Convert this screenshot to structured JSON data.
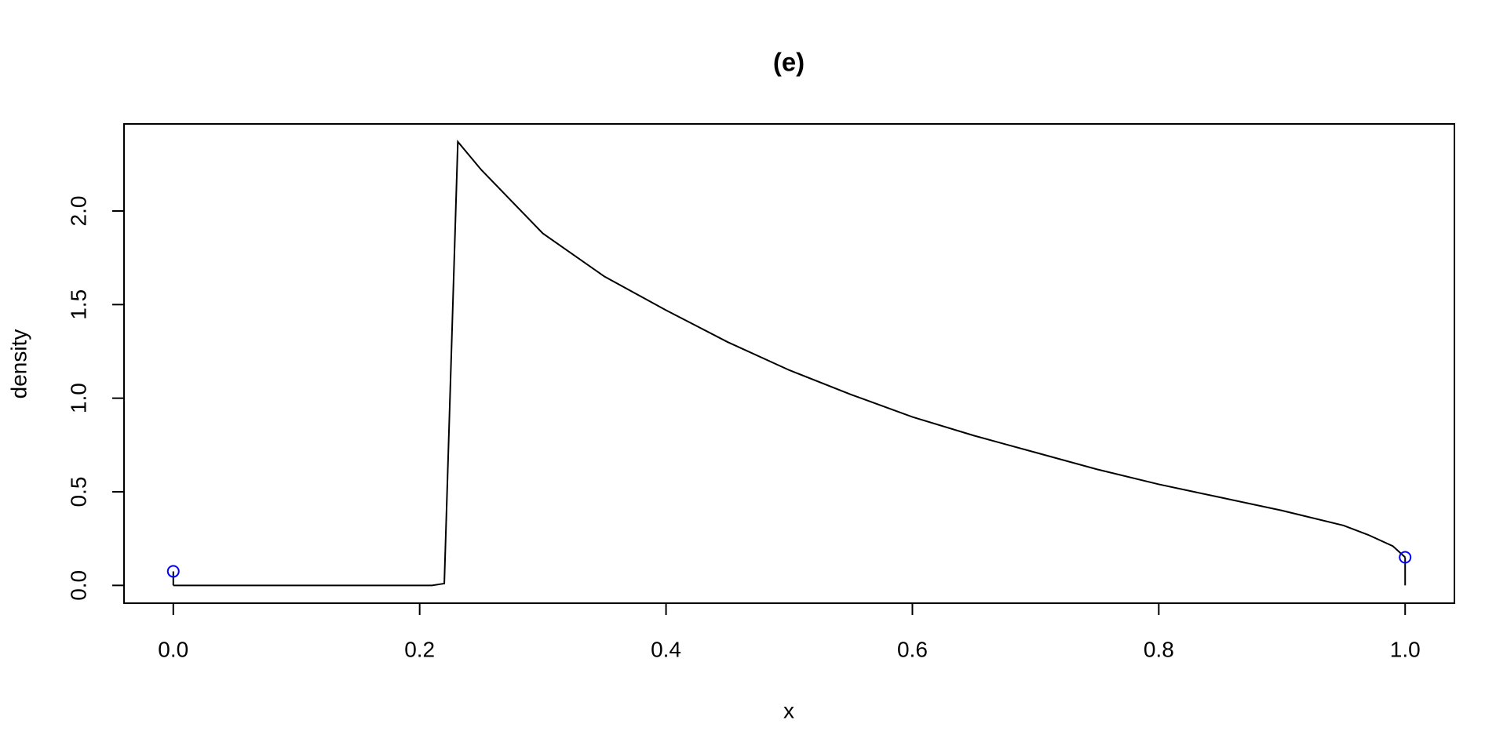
{
  "chart_data": {
    "type": "line",
    "title": "(e)",
    "x_label": "x",
    "y_label": "density",
    "x": [
      0,
      0.21,
      0.22,
      0.231,
      0.25,
      0.3,
      0.35,
      0.4,
      0.45,
      0.5,
      0.55,
      0.6,
      0.65,
      0.7,
      0.75,
      0.8,
      0.85,
      0.9,
      0.95,
      0.97,
      0.99,
      1.0
    ],
    "series": [
      {
        "color": "#000000",
        "values": [
          0,
          0,
          0.01,
          2.37,
          2.22,
          1.88,
          1.65,
          1.47,
          1.3,
          1.15,
          1.02,
          0.9,
          0.8,
          0.71,
          0.62,
          0.54,
          0.47,
          0.4,
          0.32,
          0.27,
          0.21,
          0.15
        ]
      }
    ],
    "point_masses": {
      "x": [
        0,
        1
      ],
      "values": [
        0.075,
        0.15
      ],
      "color": "#0000ff",
      "stem_color": "#000000"
    },
    "xlim": [
      -0.04,
      1.04
    ],
    "ylim": [
      -0.095,
      2.465
    ],
    "xticks": [
      {
        "value": 0,
        "label": "0.0"
      },
      0.2,
      0.4,
      0.6,
      0.8,
      {
        "value": 1,
        "label": "1.0"
      }
    ],
    "yticks": [
      {
        "value": 0,
        "label": "0.0"
      },
      0.5,
      {
        "value": 1,
        "label": "1.0"
      },
      1.5,
      {
        "value": 2,
        "label": "2.0"
      }
    ]
  }
}
